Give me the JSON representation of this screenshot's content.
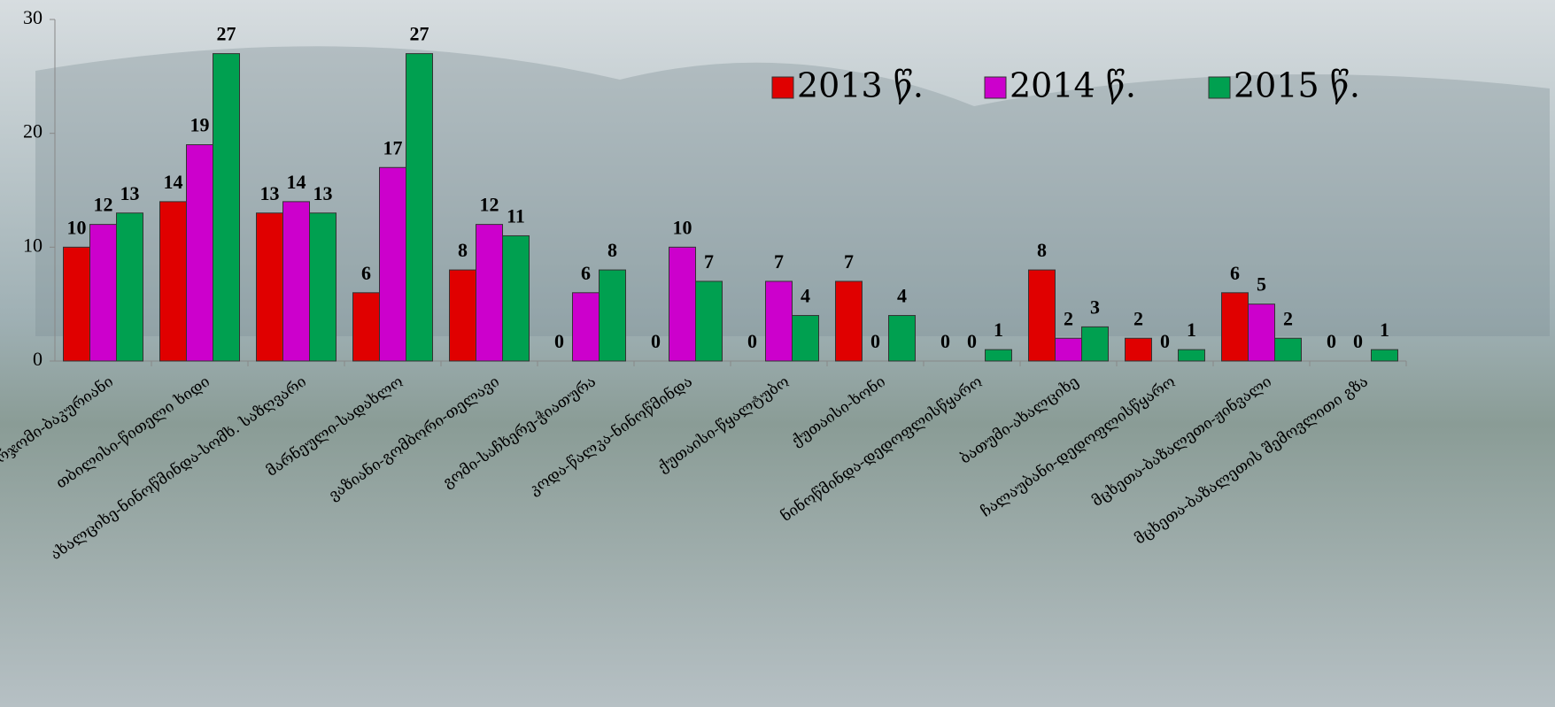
{
  "chart_data": {
    "type": "bar",
    "categories": [
      "ბორჯომი-ბაკურიანი",
      "თბილისი-წითელი ხიდი",
      "ახალციხე-ნინოწმინდა-სომხ. საზღვარი",
      "მარნეული-სადახლო",
      "ვაზიანი-გომბორი-თელავი",
      "გომი-საჩხერე-ჭიათურა",
      "კოდა-წალკა-ნინოწმინდა",
      "ქუთაისი-წყალტუბო",
      "ქუთაისი-ხონი",
      "ნინოწმინდა-დედოფლისწყარო",
      "ბათუმი-ახალციხე",
      "ჩალაუბანი-დედოფლისწყარო",
      "მცხეთა-ბაზალეთი-ჟინვალი",
      "მცხეთა-ბაზალეთის შემოვლითი გზა"
    ],
    "series": [
      {
        "name": "2013 წ.",
        "color": "#e00000",
        "values": [
          10,
          14,
          13,
          6,
          8,
          0,
          0,
          0,
          7,
          0,
          8,
          2,
          6,
          0
        ]
      },
      {
        "name": "2014 წ.",
        "color": "#cc00cc",
        "values": [
          12,
          19,
          14,
          17,
          12,
          6,
          10,
          7,
          0,
          0,
          2,
          0,
          5,
          0
        ]
      },
      {
        "name": "2015 წ.",
        "color": "#00a050",
        "values": [
          13,
          27,
          13,
          27,
          11,
          8,
          7,
          4,
          4,
          1,
          3,
          1,
          2,
          1
        ]
      }
    ],
    "ylim": [
      0,
      30
    ],
    "yticks": [
      0,
      10,
      20,
      30
    ],
    "legend": "top-right"
  }
}
